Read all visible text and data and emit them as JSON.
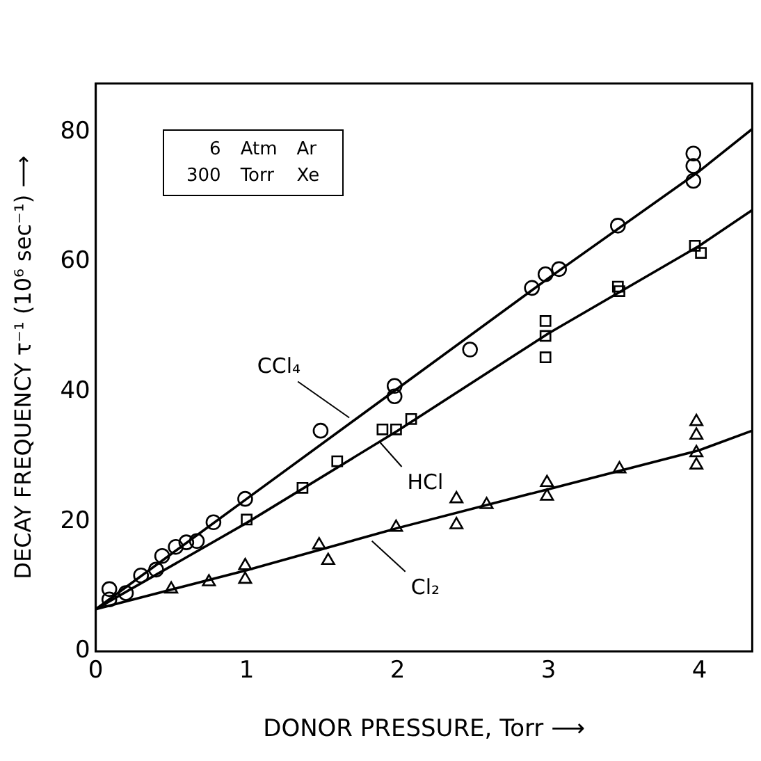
{
  "chart_data": {
    "type": "scatter",
    "xlabel": "DONOR PRESSURE, Torr ⟶",
    "ylabel": "DECAY FREQUENCY τ⁻¹ (10⁶ sec⁻¹) ⟶",
    "xlim": [
      0,
      4.35
    ],
    "ylim": [
      0,
      87.5
    ],
    "xticks": [
      0,
      1,
      2,
      3,
      4
    ],
    "yticks": [
      0,
      20,
      40,
      60,
      80
    ],
    "grid": false,
    "legend": false,
    "series": [
      {
        "marker": "circle",
        "color": "#000000",
        "x": [
          0.09,
          0.09,
          0.2,
          0.3,
          0.4,
          0.44,
          0.53,
          0.6,
          0.67,
          0.78,
          0.99,
          1.49,
          1.98,
          1.98,
          2.48,
          2.89,
          2.98,
          3.07,
          3.46,
          3.96,
          3.96,
          3.96
        ],
        "values": [
          9.6,
          8.0,
          9.0,
          11.7,
          12.6,
          14.7,
          16.1,
          16.8,
          17.0,
          19.9,
          23.5,
          34.0,
          39.3,
          40.9,
          46.5,
          56,
          58.1,
          58.9,
          65.6,
          72.5,
          74.8,
          76.7
        ]
      },
      {
        "marker": "square",
        "color": "#000000",
        "x": [
          1.0,
          1.37,
          1.6,
          1.9,
          1.99,
          2.09,
          2.98,
          2.98,
          2.98,
          3.46,
          3.47,
          3.97,
          4.01
        ],
        "values": [
          20.3,
          25.2,
          29.3,
          34.2,
          34.2,
          35.8,
          50.9,
          48.6,
          45.3,
          56.2,
          55.5,
          62.5,
          61.4
        ]
      },
      {
        "marker": "triangle",
        "color": "#000000",
        "x": [
          0.5,
          0.75,
          0.99,
          0.99,
          1.48,
          1.54,
          1.99,
          2.39,
          2.39,
          2.59,
          2.99,
          2.99,
          3.47,
          3.98,
          3.98,
          3.98,
          3.98
        ],
        "values": [
          9.6,
          10.7,
          11.1,
          13.2,
          16.4,
          14.0,
          19.1,
          23.5,
          19.5,
          22.6,
          26.0,
          23.9,
          28.1,
          35.4,
          33.3,
          30.6,
          28.7
        ]
      },
      {
        "type": "line",
        "marker": "none",
        "color": "#000000",
        "x": [
          0,
          1,
          2,
          3,
          4,
          4.35
        ],
        "values": [
          6.5,
          23.5,
          40.5,
          57.5,
          74,
          80.5
        ]
      },
      {
        "type": "line",
        "marker": "none",
        "color": "#000000",
        "x": [
          0,
          1,
          2,
          3,
          4,
          4.35
        ],
        "values": [
          6.5,
          19.8,
          34.0,
          49,
          62.5,
          68
        ]
      },
      {
        "type": "line",
        "marker": "none",
        "color": "#000000",
        "x": [
          0,
          1,
          2,
          3,
          4,
          4.35
        ],
        "values": [
          6.5,
          12.5,
          19,
          25,
          31,
          34
        ]
      }
    ],
    "annotations": [
      {
        "text": "CCl₄",
        "x": 1.68,
        "y": 36
      },
      {
        "text": "HCl",
        "x": 1.88,
        "y": 32.3
      },
      {
        "text": "Cl₂",
        "x": 1.83,
        "y": 17
      },
      "6 Atm Ar",
      "300 Torr Xe"
    ]
  }
}
